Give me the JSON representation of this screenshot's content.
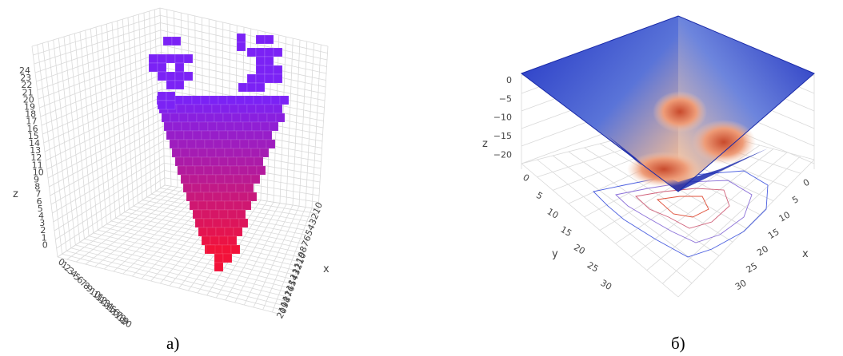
{
  "captions": {
    "left": "а)",
    "right": "б)"
  },
  "chart_data": [
    {
      "type": "scatter",
      "subtype": "3d-voxels",
      "xlabel": "x",
      "zlabel": "z",
      "z_ticks": [
        "24",
        "23",
        "22",
        "21",
        "20",
        "19",
        "18",
        "17",
        "16",
        "15",
        "14",
        "13",
        "12",
        "11",
        "10",
        "9",
        "8",
        "7",
        "6",
        "5",
        "4",
        "3",
        "2",
        "1",
        "0"
      ],
      "x_ticks": [
        "0",
        "1",
        "2",
        "3",
        "4",
        "5",
        "6",
        "7",
        "8",
        "9",
        "10",
        "11",
        "12",
        "13",
        "14",
        "15",
        "16",
        "17",
        "18",
        "19",
        "20"
      ],
      "y_ticks": [
        "0",
        "1",
        "2",
        "3",
        "4",
        "5",
        "6",
        "7",
        "8",
        "9",
        "10",
        "11",
        "12",
        "13",
        "14",
        "15",
        "16",
        "17",
        "18",
        "19",
        "20"
      ],
      "colors": {
        "top": "#7b22f5",
        "bottom": "#f2123a"
      },
      "grid": true
    },
    {
      "type": "surface",
      "subtype": "3d-surface-with-contours",
      "xlabel": "x",
      "ylabel": "y",
      "zlabel": "z",
      "z_ticks": [
        "0",
        "−5",
        "−10",
        "−15",
        "−20"
      ],
      "x_ticks": [
        "0",
        "5",
        "10",
        "15",
        "20",
        "25",
        "30"
      ],
      "y_ticks": [
        "0",
        "5",
        "10",
        "15",
        "20",
        "25",
        "30"
      ],
      "zlim": [
        -24,
        0
      ],
      "colors": {
        "high": "#1f2fbf",
        "low": "#f2b08a",
        "deep": "#e06a46"
      },
      "grid": true
    }
  ]
}
